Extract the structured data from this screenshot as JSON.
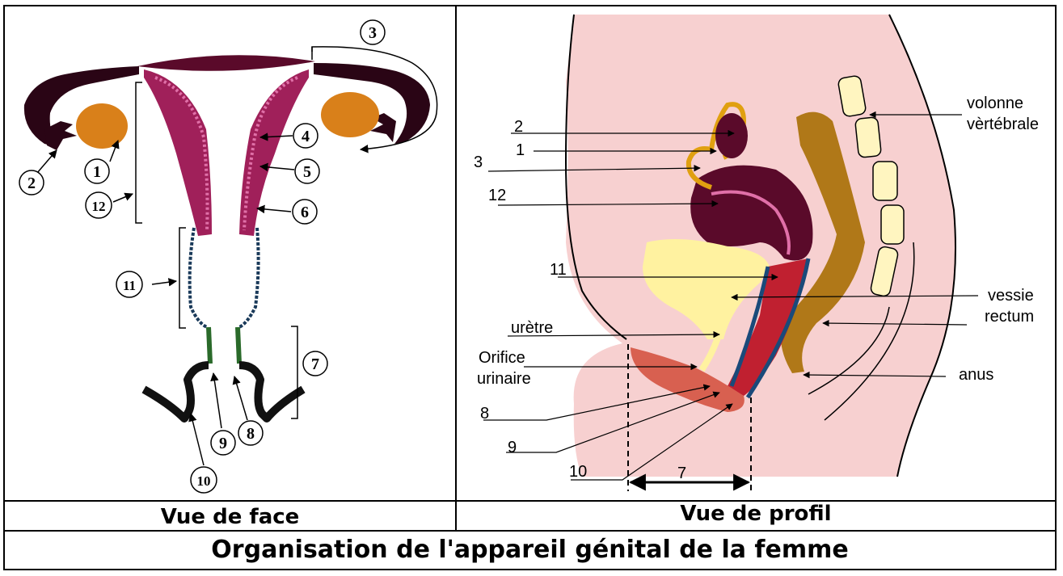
{
  "front_view": {
    "caption": "Vue de face",
    "labels": [
      "1",
      "2",
      "3",
      "4",
      "5",
      "6",
      "7",
      "8",
      "9",
      "10",
      "11",
      "12"
    ]
  },
  "profile_view": {
    "caption": "Vue de profil",
    "labels": {
      "n2": "2",
      "n1": "1",
      "n3": "3",
      "n12": "12",
      "n11": "11",
      "n8": "8",
      "n9": "9",
      "n10": "10",
      "n7": "7",
      "uretre": "urètre",
      "orifice_1": "Orifice",
      "orifice_2": "urinaire",
      "colonne_1": "volonne",
      "colonne_2": "vèrtébrale",
      "vessie": "vessie",
      "rectum": "rectum",
      "anus": "anus"
    }
  },
  "title": "Organisation de l'appareil génital de la femme",
  "colors": {
    "uterus_wall": "#a0205a",
    "uterus_dark": "#5a0a2a",
    "ovary": "#d9801a",
    "bladder": "#fff2a0",
    "rectum": "#b07818",
    "skin": "#f7d0d0",
    "vulva": "#d86050",
    "vagina_blue": "#1a4a7a",
    "green": "#2a6a2a"
  }
}
